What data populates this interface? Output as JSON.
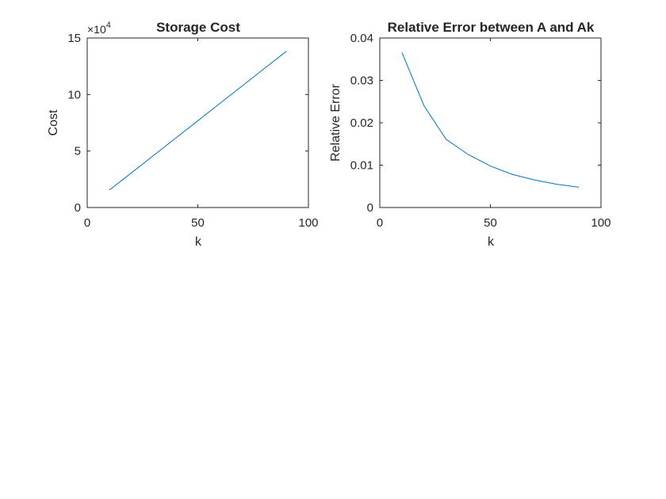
{
  "chart_data": [
    {
      "type": "line",
      "title": "Storage Cost",
      "xlabel": "k",
      "ylabel": "Cost",
      "xlim": [
        0,
        100
      ],
      "ylim": [
        0,
        15
      ],
      "y_multiplier": "×10",
      "y_exponent": "4",
      "x_ticks": [
        "0",
        "50",
        "100"
      ],
      "y_ticks": [
        "0",
        "5",
        "10",
        "15"
      ],
      "series": [
        {
          "color": "#0072bd",
          "x": [
            10,
            20,
            30,
            40,
            50,
            60,
            70,
            80,
            90
          ],
          "y": [
            1.54,
            3.07,
            4.61,
            6.14,
            7.68,
            9.22,
            10.75,
            12.29,
            13.82
          ]
        }
      ],
      "grid": false
    },
    {
      "type": "line",
      "title": "Relative Error between A and Ak",
      "xlabel": "k",
      "ylabel": "Relative Error",
      "xlim": [
        0,
        100
      ],
      "ylim": [
        0,
        0.04
      ],
      "x_ticks": [
        "0",
        "50",
        "100"
      ],
      "y_ticks": [
        "0",
        "0.01",
        "0.02",
        "0.03",
        "0.04"
      ],
      "series": [
        {
          "color": "#0072bd",
          "x": [
            10,
            20,
            30,
            40,
            50,
            60,
            70,
            80,
            90
          ],
          "y": [
            0.0366,
            0.024,
            0.0161,
            0.0125,
            0.0098,
            0.0078,
            0.0065,
            0.0055,
            0.0048
          ]
        }
      ],
      "grid": false
    }
  ]
}
